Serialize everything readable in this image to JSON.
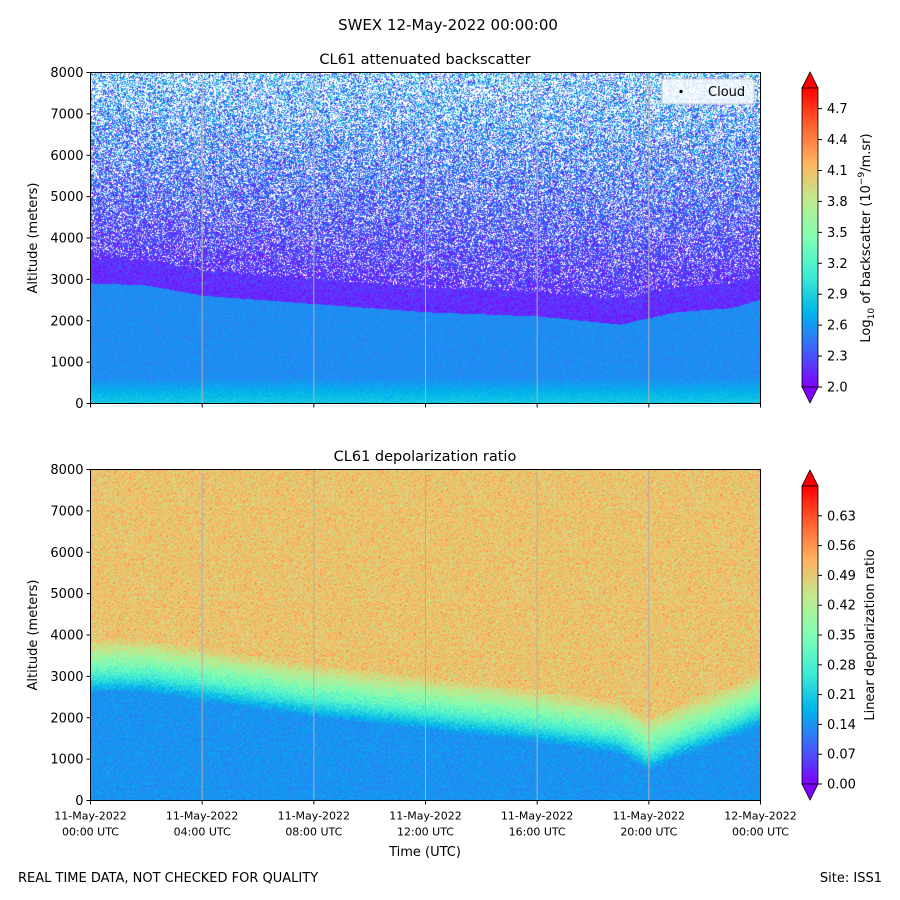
{
  "suptitle": "SWEX 12-May-2022 00:00:00",
  "footer_left": "REAL TIME DATA, NOT CHECKED FOR QUALITY",
  "footer_right": "Site: ISS1",
  "colors": {
    "rainbow": [
      "#8000ff",
      "#4062fa",
      "#00b5eb",
      "#40ecd4",
      "#80ffb4",
      "#c0eb8d",
      "#ffb360",
      "#ff6230",
      "#ff0000"
    ],
    "gridline": "#b0b0b0"
  },
  "chart_data": [
    {
      "type": "heatmap",
      "title": "CL61 attenuated backscatter",
      "ylabel": "Altitude (meters)",
      "xlabel": "",
      "ylim": [
        0,
        8000
      ],
      "xlim_hours": [
        0,
        24
      ],
      "yticks": [
        0,
        1000,
        2000,
        3000,
        4000,
        5000,
        6000,
        7000,
        8000
      ],
      "xticks_hours": [
        0,
        4,
        8,
        12,
        16,
        20,
        24
      ],
      "show_xticklabels": false,
      "colorbar": {
        "label_prefix": "Log",
        "label_sub": "10",
        "label_mid": " of backscatter (10",
        "label_sup": "−9",
        "label_end": "/m.sr)",
        "min": 2.0,
        "max": 4.9,
        "ticks": [
          "2.0",
          "2.3",
          "2.6",
          "2.9",
          "3.2",
          "3.5",
          "3.8",
          "4.1",
          "4.4",
          "4.7"
        ]
      },
      "legend": {
        "entries": [
          "Cloud"
        ],
        "position": "top-right"
      },
      "profile_description": {
        "boundary_layer_top_m": {
          "hours": [
            0,
            2,
            4,
            8,
            12,
            16,
            19,
            21,
            23,
            24
          ],
          "values": [
            2900,
            2850,
            2600,
            2400,
            2200,
            2100,
            1900,
            2200,
            2300,
            2500
          ]
        },
        "near_surface_value": 2.85,
        "boundary_layer_value": 2.55,
        "free_troposphere_value": 2.15,
        "upper_value": 2.6
      }
    },
    {
      "type": "heatmap",
      "title": "CL61 depolarization ratio",
      "ylabel": "Altitude (meters)",
      "xlabel": "Time (UTC)",
      "ylim": [
        0,
        8000
      ],
      "xlim_hours": [
        0,
        24
      ],
      "yticks": [
        0,
        1000,
        2000,
        3000,
        4000,
        5000,
        6000,
        7000,
        8000
      ],
      "xticks_hours": [
        0,
        4,
        8,
        12,
        16,
        20,
        24
      ],
      "xtick_labels": [
        [
          "11-May-2022",
          "00:00 UTC"
        ],
        [
          "11-May-2022",
          "04:00 UTC"
        ],
        [
          "11-May-2022",
          "08:00 UTC"
        ],
        [
          "11-May-2022",
          "12:00 UTC"
        ],
        [
          "11-May-2022",
          "16:00 UTC"
        ],
        [
          "11-May-2022",
          "20:00 UTC"
        ],
        [
          "12-May-2022",
          "00:00 UTC"
        ]
      ],
      "show_xticklabels": true,
      "colorbar": {
        "label": "Linear depolarization ratio",
        "min": 0.0,
        "max": 0.7,
        "ticks": [
          "0.00",
          "0.07",
          "0.14",
          "0.21",
          "0.28",
          "0.35",
          "0.42",
          "0.49",
          "0.56",
          "0.63"
        ]
      },
      "profile_description": {
        "boundary_layer_top_m": {
          "hours": [
            0,
            2,
            4,
            8,
            12,
            16,
            19,
            20,
            21,
            23,
            24
          ],
          "values": [
            2800,
            2800,
            2600,
            2200,
            1900,
            1600,
            1300,
            900,
            1200,
            1700,
            2000
          ]
        },
        "boundary_layer_value": 0.14,
        "transition_value": 0.3,
        "free_troposphere_value": 0.5
      }
    }
  ]
}
